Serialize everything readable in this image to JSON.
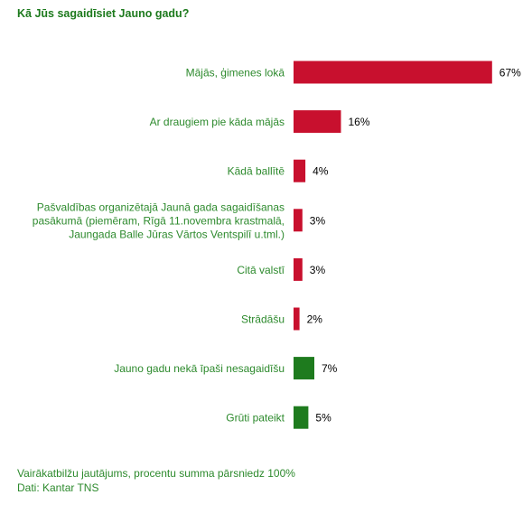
{
  "chart_data": {
    "type": "bar",
    "orientation": "horizontal",
    "title": "Kā Jūs sagaidīsiet Jauno gadu?",
    "categories": [
      [
        "Mājās, ģimenes lokā"
      ],
      [
        "Ar draugiem pie kāda mājās"
      ],
      [
        "Kādā ballītē"
      ],
      [
        "Pašvaldības organizētajā Jaunā gada sagaidīšanas",
        "pasākumā (piemēram, Rīgā 11.novembra krastmalā,",
        "Jaungada Balle Jūras Vārtos Ventspilī u.tml.)"
      ],
      [
        "Citā valstī"
      ],
      [
        "Strādāšu"
      ],
      [
        "Jauno gadu nekā īpaši nesagaidīšu"
      ],
      [
        "Grūti pateikt"
      ]
    ],
    "values": [
      67,
      16,
      4,
      3,
      3,
      2,
      7,
      5
    ],
    "value_labels": [
      "67%",
      "16%",
      "4%",
      "3%",
      "3%",
      "2%",
      "7%",
      "5%"
    ],
    "bar_colors": [
      "#c8102e",
      "#c8102e",
      "#c8102e",
      "#c8102e",
      "#c8102e",
      "#c8102e",
      "#1e7b1e",
      "#1e7b1e"
    ],
    "xlim": [
      0,
      100
    ],
    "grid": false,
    "legend": "none"
  },
  "footnotes": {
    "line1": "Vairākatbilžu jautājums, procentu summa pārsniedz 100%",
    "line2": "Dati: Kantar TNS"
  }
}
